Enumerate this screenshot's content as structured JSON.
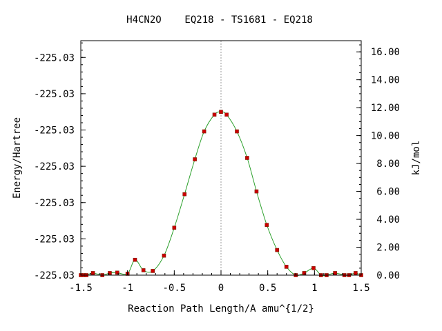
{
  "chart_data": {
    "type": "line",
    "title": "H4CN2O    EQ218 - TS1681 - EQ218",
    "xlabel": "Reaction Path Length/A amu^{1/2}",
    "ylabel_left": "Energy/Hartree",
    "ylabel_right": "kJ/mol",
    "xlim": [
      -1.5,
      1.5
    ],
    "ylim_kjmol": [
      0,
      16.8
    ],
    "x_ticks": [
      "-1.5",
      "-1",
      "-0.5",
      "0",
      "0.5",
      "1",
      "1.5"
    ],
    "x_tick_values": [
      -1.5,
      -1,
      -0.5,
      0,
      0.5,
      1,
      1.5
    ],
    "left_ticks": [
      "-225.03",
      "-225.03",
      "-225.03",
      "-225.03",
      "-225.03",
      "-225.03",
      "-225.03"
    ],
    "left_tick_kjmol": [
      0,
      2.6,
      5.2,
      7.8,
      10.4,
      13.0,
      15.6
    ],
    "right_ticks": [
      "0.00",
      "2.00",
      "4.00",
      "6.00",
      "8.00",
      "10.00",
      "12.00",
      "14.00",
      "16.00"
    ],
    "right_tick_values": [
      0,
      2,
      4,
      6,
      8,
      10,
      12,
      14,
      16
    ],
    "ts_marker_x": 0,
    "colors": {
      "curve": "#2ca02c",
      "points": "#cc0000",
      "point_edge": "#7a1a00",
      "ts_line": "#999999",
      "frame": "#000000"
    },
    "points": [
      {
        "x": -1.5,
        "y": 0.0
      },
      {
        "x": -1.47,
        "y": 0.0
      },
      {
        "x": -1.44,
        "y": 0.0
      },
      {
        "x": -1.37,
        "y": 0.15
      },
      {
        "x": -1.27,
        "y": 0.0
      },
      {
        "x": -1.19,
        "y": 0.15
      },
      {
        "x": -1.11,
        "y": 0.18
      },
      {
        "x": -1.0,
        "y": 0.1
      },
      {
        "x": -0.92,
        "y": 1.1
      },
      {
        "x": -0.83,
        "y": 0.35
      },
      {
        "x": -0.73,
        "y": 0.3
      },
      {
        "x": -0.61,
        "y": 1.4
      },
      {
        "x": -0.5,
        "y": 3.4
      },
      {
        "x": -0.39,
        "y": 5.8
      },
      {
        "x": -0.28,
        "y": 8.3
      },
      {
        "x": -0.18,
        "y": 10.3
      },
      {
        "x": -0.07,
        "y": 11.5
      },
      {
        "x": 0.0,
        "y": 11.7
      },
      {
        "x": 0.06,
        "y": 11.5
      },
      {
        "x": 0.17,
        "y": 10.3
      },
      {
        "x": 0.28,
        "y": 8.4
      },
      {
        "x": 0.38,
        "y": 6.0
      },
      {
        "x": 0.49,
        "y": 3.6
      },
      {
        "x": 0.6,
        "y": 1.8
      },
      {
        "x": 0.7,
        "y": 0.6
      },
      {
        "x": 0.8,
        "y": 0.0
      },
      {
        "x": 0.89,
        "y": 0.15
      },
      {
        "x": 0.99,
        "y": 0.5
      },
      {
        "x": 1.07,
        "y": 0.0
      },
      {
        "x": 1.13,
        "y": 0.0
      },
      {
        "x": 1.22,
        "y": 0.15
      },
      {
        "x": 1.32,
        "y": 0.0
      },
      {
        "x": 1.37,
        "y": 0.0
      },
      {
        "x": 1.44,
        "y": 0.15
      },
      {
        "x": 1.5,
        "y": 0.0
      }
    ]
  }
}
